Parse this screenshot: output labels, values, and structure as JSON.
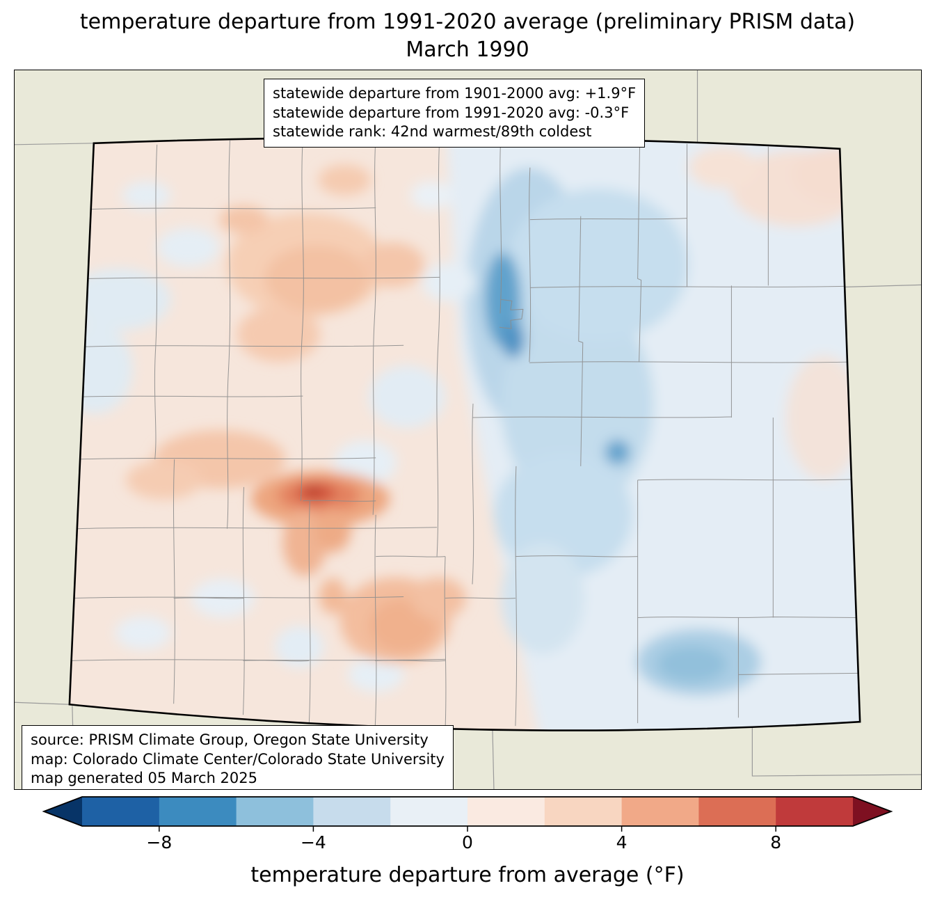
{
  "title": {
    "line1": "temperature departure from 1991-2020 average (preliminary PRISM data)",
    "line2": "March 1990"
  },
  "stats_box": {
    "lines": [
      "statewide departure from 1901-2000 avg: +1.9°F",
      "statewide departure from 1991-2020 avg: -0.3°F",
      "statewide rank: 42nd warmest/89th coldest"
    ]
  },
  "credits_box": {
    "lines": [
      "source: PRISM Climate Group, Oregon State University",
      "map: Colorado Climate Center/Colorado State University",
      "map generated 05 March 2025"
    ]
  },
  "colorbar": {
    "label": "temperature departure from average (°F)",
    "range": [
      -10,
      10
    ],
    "ticks": [
      {
        "value": -8,
        "label": "−8"
      },
      {
        "value": -4,
        "label": "−4"
      },
      {
        "value": 0,
        "label": "0"
      },
      {
        "value": 4,
        "label": "4"
      },
      {
        "value": 8,
        "label": "8"
      }
    ],
    "segment_colors": [
      "#1e61a5",
      "#3c8bbf",
      "#8ec0dc",
      "#c7dcec",
      "#e9f0f6",
      "#faeae1",
      "#f8d6c1",
      "#f1a988",
      "#dc6e55",
      "#c03a3b"
    ],
    "under_color": "#073467",
    "over_color": "#7e1021"
  },
  "map": {
    "region": "Colorado",
    "outside_color": "#e9e9d9",
    "state_border_color": "#000000",
    "county_border_color": "#8c8c8c",
    "warm_base_color": "#f6e6dc",
    "cool_base_color": "#e4edf5"
  }
}
